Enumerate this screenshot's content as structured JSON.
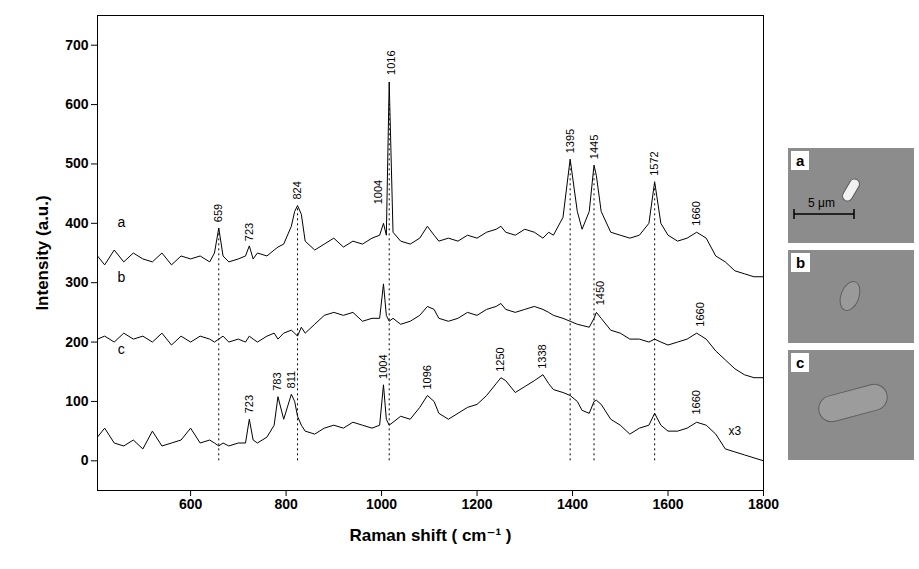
{
  "chart_data": {
    "type": "line",
    "xlabel": "Raman shift ( cm⁻¹ )",
    "ylabel": "Intensity (a.u.)",
    "xlim": [
      405,
      1800
    ],
    "ylim": [
      -50,
      750
    ],
    "xticks": [
      600,
      800,
      1000,
      1200,
      1400,
      1600,
      1800
    ],
    "yticks": [
      0,
      100,
      200,
      300,
      400,
      500,
      600,
      700
    ],
    "grid": false,
    "x": [
      405,
      420,
      440,
      460,
      480,
      500,
      520,
      540,
      560,
      580,
      600,
      620,
      640,
      650,
      659,
      668,
      680,
      700,
      715,
      723,
      731,
      740,
      760,
      775,
      783,
      795,
      811,
      818,
      824,
      832,
      840,
      860,
      880,
      900,
      920,
      940,
      960,
      980,
      996,
      1004,
      1010,
      1016,
      1024,
      1040,
      1060,
      1080,
      1096,
      1110,
      1120,
      1140,
      1160,
      1180,
      1200,
      1220,
      1240,
      1250,
      1260,
      1280,
      1300,
      1320,
      1338,
      1350,
      1360,
      1380,
      1395,
      1410,
      1420,
      1435,
      1445,
      1450,
      1460,
      1480,
      1500,
      1520,
      1540,
      1560,
      1572,
      1585,
      1600,
      1620,
      1640,
      1660,
      1680,
      1700,
      1720,
      1740,
      1760,
      1780,
      1800
    ],
    "series": [
      {
        "name": "a",
        "color": "#000000",
        "label_x": 455,
        "label_y": 402,
        "values": [
          345,
          330,
          355,
          335,
          350,
          340,
          335,
          350,
          330,
          345,
          340,
          345,
          335,
          350,
          392,
          345,
          335,
          340,
          345,
          362,
          340,
          350,
          345,
          355,
          360,
          365,
          395,
          420,
          430,
          415,
          370,
          355,
          365,
          375,
          360,
          370,
          365,
          375,
          380,
          400,
          380,
          638,
          385,
          370,
          365,
          375,
          395,
          380,
          370,
          375,
          370,
          380,
          375,
          385,
          390,
          395,
          385,
          380,
          390,
          385,
          375,
          385,
          380,
          410,
          508,
          420,
          390,
          420,
          498,
          480,
          420,
          385,
          380,
          375,
          380,
          400,
          470,
          400,
          380,
          370,
          375,
          385,
          375,
          345,
          335,
          320,
          315,
          310,
          310
        ]
      },
      {
        "name": "b",
        "color": "#000000",
        "label_x": 455,
        "label_y": 308,
        "values": [
          205,
          210,
          200,
          215,
          205,
          210,
          200,
          215,
          195,
          210,
          200,
          210,
          205,
          200,
          205,
          210,
          200,
          205,
          200,
          210,
          205,
          200,
          210,
          215,
          205,
          215,
          220,
          215,
          210,
          225,
          215,
          230,
          245,
          250,
          245,
          250,
          235,
          240,
          240,
          298,
          245,
          235,
          240,
          230,
          235,
          245,
          260,
          255,
          240,
          235,
          240,
          250,
          245,
          255,
          260,
          265,
          255,
          250,
          255,
          260,
          255,
          250,
          245,
          240,
          235,
          230,
          228,
          225,
          240,
          250,
          240,
          220,
          215,
          205,
          205,
          200,
          205,
          200,
          195,
          200,
          205,
          215,
          205,
          185,
          170,
          155,
          145,
          140,
          140
        ]
      },
      {
        "name": "c",
        "color": "#000000",
        "label_x": 455,
        "label_y": 187,
        "values": [
          40,
          55,
          30,
          25,
          35,
          20,
          50,
          25,
          30,
          35,
          55,
          30,
          35,
          30,
          25,
          30,
          25,
          30,
          30,
          70,
          35,
          30,
          40,
          60,
          108,
          70,
          112,
          100,
          75,
          60,
          50,
          45,
          55,
          60,
          55,
          65,
          60,
          55,
          60,
          128,
          70,
          60,
          65,
          75,
          70,
          90,
          110,
          100,
          80,
          70,
          80,
          90,
          95,
          110,
          130,
          140,
          135,
          115,
          125,
          135,
          145,
          130,
          120,
          115,
          110,
          100,
          85,
          80,
          100,
          102,
          95,
          70,
          60,
          45,
          55,
          60,
          80,
          60,
          50,
          50,
          55,
          65,
          60,
          45,
          20,
          15,
          10,
          5,
          0
        ]
      }
    ],
    "peak_labels": [
      {
        "text": "659",
        "x": 659,
        "y": 402
      },
      {
        "text": "723",
        "x": 723,
        "y": 370
      },
      {
        "text": "824",
        "x": 824,
        "y": 440
      },
      {
        "text": "1004",
        "x": 993,
        "y": 432
      },
      {
        "text": "1016",
        "x": 1020,
        "y": 650
      },
      {
        "text": "1395",
        "x": 1395,
        "y": 518
      },
      {
        "text": "1445",
        "x": 1445,
        "y": 508
      },
      {
        "text": "1572",
        "x": 1572,
        "y": 480
      },
      {
        "text": "1660",
        "x": 1660,
        "y": 396
      },
      {
        "text": "1450",
        "x": 1458,
        "y": 262
      },
      {
        "text": "1660",
        "x": 1668,
        "y": 226
      },
      {
        "text": "723",
        "x": 723,
        "y": 80
      },
      {
        "text": "783",
        "x": 781,
        "y": 118
      },
      {
        "text": "811",
        "x": 811,
        "y": 122
      },
      {
        "text": "1004",
        "x": 1004,
        "y": 138
      },
      {
        "text": "1096",
        "x": 1096,
        "y": 120
      },
      {
        "text": "1250",
        "x": 1250,
        "y": 150
      },
      {
        "text": "1338",
        "x": 1338,
        "y": 155
      },
      {
        "text": "1660",
        "x": 1660,
        "y": 78
      }
    ],
    "annotations": [
      {
        "text": "x3",
        "x": 1740,
        "y": 50
      }
    ],
    "reference_lines": [
      {
        "x": 659,
        "y1": 0,
        "y2": 392
      },
      {
        "x": 824,
        "y1": 0,
        "y2": 425
      },
      {
        "x": 1016,
        "y1": 0,
        "y2": 600
      },
      {
        "x": 1395,
        "y1": 0,
        "y2": 500
      },
      {
        "x": 1445,
        "y1": 0,
        "y2": 490
      },
      {
        "x": 1572,
        "y1": 0,
        "y2": 465
      }
    ],
    "line_style": "dotted"
  },
  "image_panels": {
    "labels": [
      "a",
      "b",
      "c"
    ],
    "scale_bar": "5 μm"
  }
}
